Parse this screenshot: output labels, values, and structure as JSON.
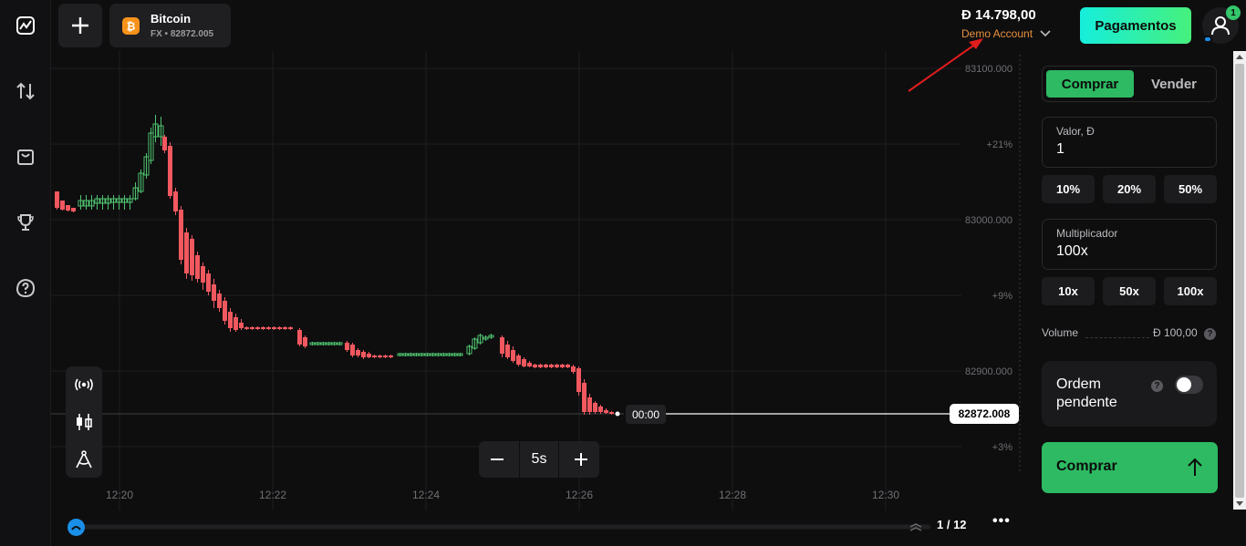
{
  "header": {
    "add_label": "+",
    "asset": {
      "name": "Bitcoin",
      "subtitle": "FX • 82872.005",
      "icon": "bitcoin-icon",
      "icon_glyph": "₿"
    },
    "balance": "Đ 14.798,00",
    "account_type": "Demo Account",
    "payments_label": "Pagamentos",
    "notifications_count": "1"
  },
  "nav": [
    "chart-icon",
    "transactions-icon",
    "shop-icon",
    "trophy-icon",
    "help-icon"
  ],
  "chart": {
    "price_labels": [
      "83100.000",
      "+21%",
      "83000.000",
      "+9%",
      "82900.000",
      "+3%"
    ],
    "time_labels": [
      "12:20",
      "12:22",
      "12:24",
      "12:26",
      "12:28",
      "12:30"
    ],
    "current_price": "82872.008",
    "timer": "00:00",
    "zoom_value": "5s",
    "page_count": "1 / 12",
    "more_label": "•••"
  },
  "panel": {
    "buy_tab": "Comprar",
    "sell_tab": "Vender",
    "amount_label": "Valor, Đ",
    "amount_value": "1",
    "amount_chips": [
      "10%",
      "20%",
      "50%"
    ],
    "multiplier_label": "Multiplicador",
    "multiplier_value": "100x",
    "multiplier_chips": [
      "10x",
      "50x",
      "100x"
    ],
    "volume_label": "Volume",
    "volume_value": "Đ 100,00",
    "pending_label": "Ordem pendente",
    "pending_on": false,
    "cta_label": "Comprar"
  },
  "colors": {
    "up": "#4fc26f",
    "down": "#f2585f",
    "accent": "#2dba62",
    "balance_account": "#e7913d"
  }
}
